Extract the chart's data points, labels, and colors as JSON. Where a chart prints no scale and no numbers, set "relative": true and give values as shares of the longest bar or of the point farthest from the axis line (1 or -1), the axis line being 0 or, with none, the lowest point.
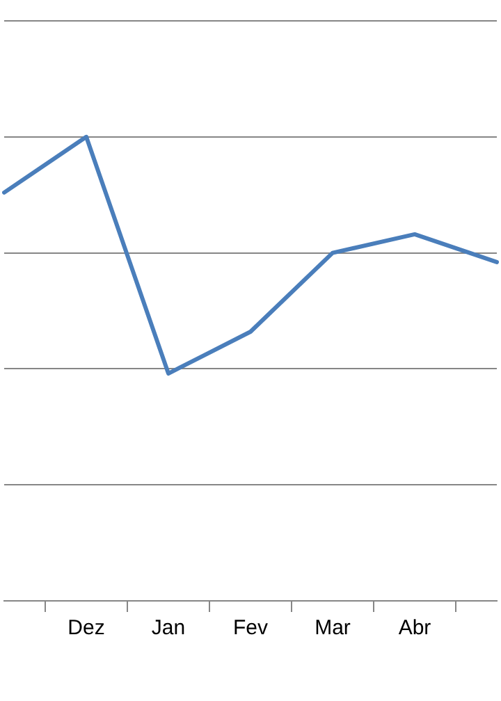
{
  "chart_data": {
    "type": "line",
    "categories": [
      null,
      "Dez",
      "Jan",
      "Fev",
      "Mar",
      "Abr",
      null
    ],
    "relative": true,
    "series": [
      {
        "color": "#4a7ebb",
        "values": [
          0.88,
          1,
          0.49,
          0.58,
          0.75,
          0.79,
          0.73
        ]
      }
    ],
    "grid": "y",
    "legend": false,
    "marker": "none",
    "line_style": "solid"
  }
}
